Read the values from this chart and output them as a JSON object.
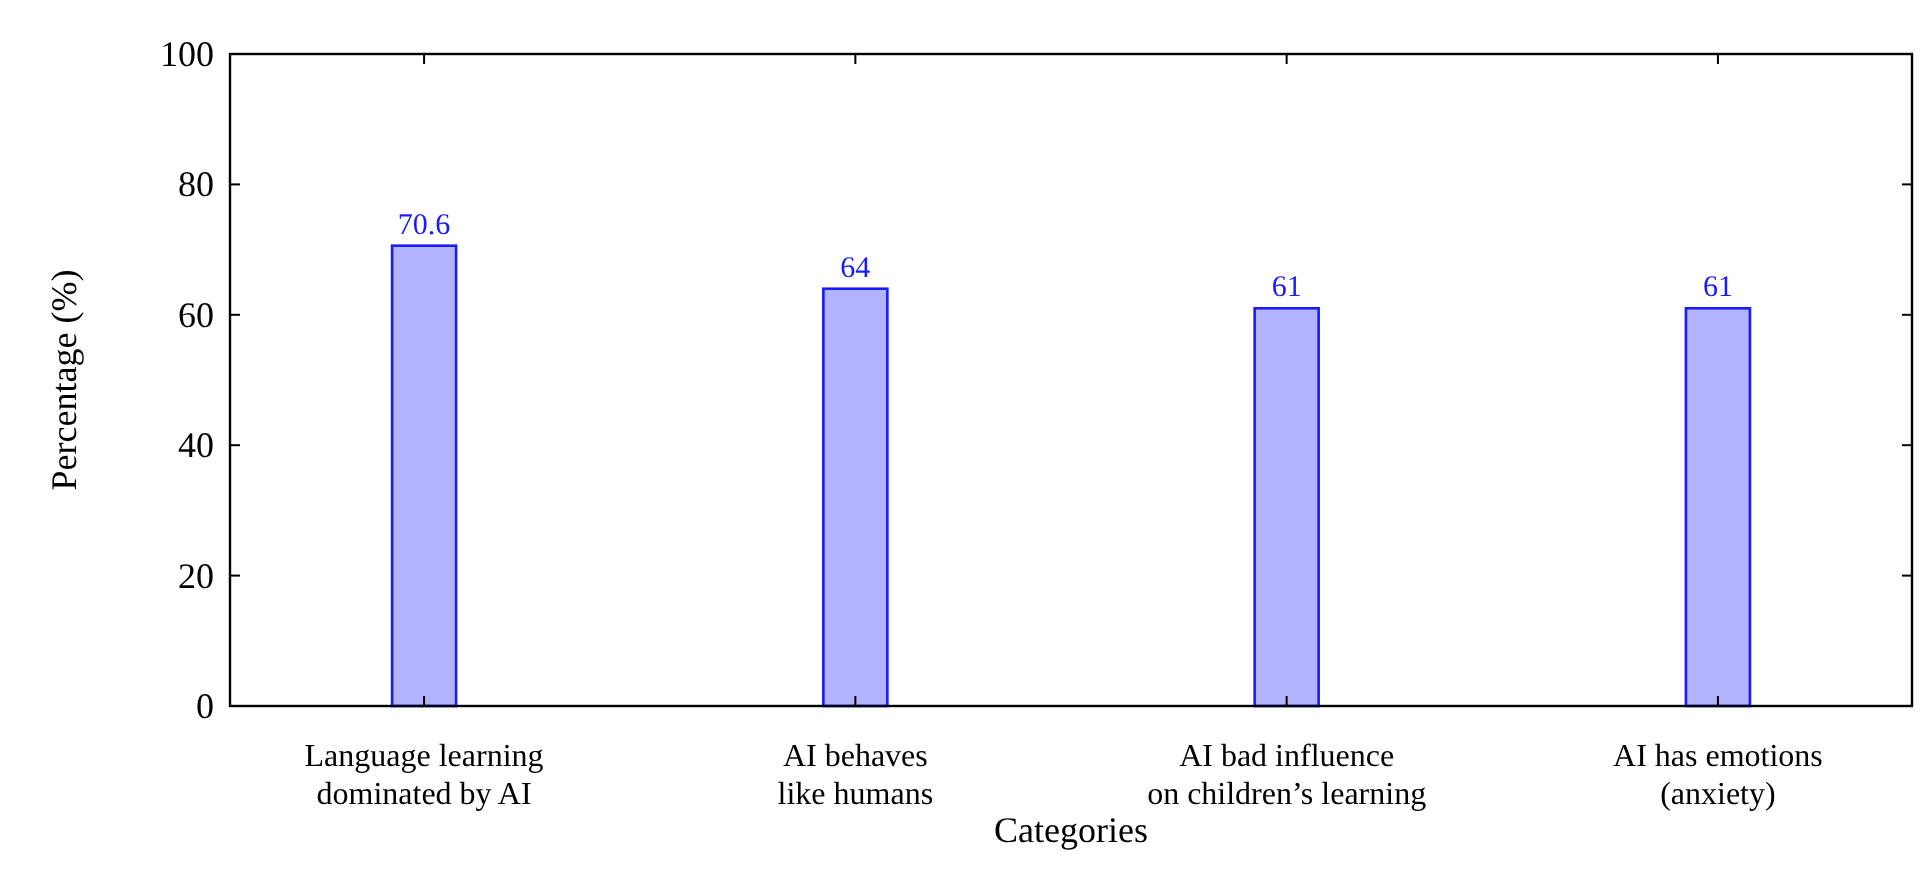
{
  "chart_data": {
    "type": "bar",
    "xlabel": "Categories",
    "ylabel": "Percentage (%)",
    "categories": [
      "Language learning\ndominated by AI",
      "AI behaves\nlike humans",
      "AI bad influence\non children’s learning",
      "AI has emotions\n(anxiety)"
    ],
    "values": [
      70.6,
      64,
      61,
      61
    ],
    "color": "#b3b3ff",
    "ylim": [
      0,
      100
    ],
    "yticks": [
      0,
      20,
      40,
      60,
      80,
      100
    ],
    "data_labels": true,
    "grid": false
  }
}
